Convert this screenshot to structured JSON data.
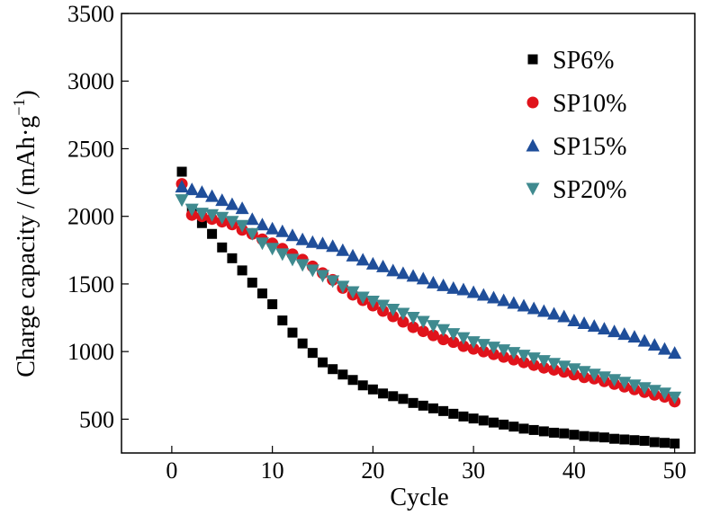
{
  "chart_data": {
    "type": "scatter",
    "xlabel": "Cycle",
    "ylabel": "Charge capacity / (mAh·g",
    "ylabel_sup": "−1",
    "ylabel_suffix": ")",
    "xlim": [
      -5,
      52
    ],
    "ylim": [
      250,
      3500
    ],
    "xticks": [
      0,
      10,
      20,
      30,
      40,
      50
    ],
    "yticks": [
      500,
      1000,
      1500,
      2000,
      2500,
      3000,
      3500
    ],
    "xtick_labels": [
      "0",
      "10",
      "20",
      "30",
      "40",
      "50"
    ],
    "ytick_labels": [
      "500",
      "1000",
      "1500",
      "2000",
      "2500",
      "3000",
      "3500"
    ],
    "grid": false,
    "legend_position": "top-right",
    "x": [
      1,
      2,
      3,
      4,
      5,
      6,
      7,
      8,
      9,
      10,
      11,
      12,
      13,
      14,
      15,
      16,
      17,
      18,
      19,
      20,
      21,
      22,
      23,
      24,
      25,
      26,
      27,
      28,
      29,
      30,
      31,
      32,
      33,
      34,
      35,
      36,
      37,
      38,
      39,
      40,
      41,
      42,
      43,
      44,
      45,
      46,
      47,
      48,
      49,
      50
    ],
    "series": [
      {
        "name": "SP6%",
        "marker": "square",
        "color": "#000000",
        "values": [
          2330,
          2040,
          1950,
          1870,
          1770,
          1690,
          1600,
          1510,
          1430,
          1350,
          1230,
          1140,
          1060,
          990,
          920,
          870,
          830,
          790,
          750,
          720,
          690,
          670,
          650,
          620,
          600,
          580,
          560,
          540,
          520,
          505,
          490,
          475,
          460,
          445,
          430,
          420,
          410,
          400,
          395,
          385,
          375,
          370,
          365,
          355,
          350,
          345,
          340,
          330,
          325,
          320
        ]
      },
      {
        "name": "SP10%",
        "marker": "circle",
        "color": "#e0131b",
        "values": [
          2240,
          2010,
          2000,
          1980,
          1960,
          1940,
          1900,
          1870,
          1830,
          1800,
          1760,
          1720,
          1680,
          1630,
          1580,
          1530,
          1470,
          1420,
          1380,
          1340,
          1300,
          1260,
          1220,
          1180,
          1150,
          1120,
          1090,
          1070,
          1040,
          1020,
          1000,
          980,
          960,
          940,
          920,
          900,
          880,
          865,
          850,
          830,
          810,
          800,
          780,
          760,
          740,
          720,
          700,
          680,
          665,
          630
        ]
      },
      {
        "name": "SP15%",
        "marker": "triangle-up",
        "color": "#1f4e9a",
        "values": [
          2220,
          2200,
          2180,
          2150,
          2120,
          2090,
          2060,
          1980,
          1940,
          1910,
          1890,
          1860,
          1830,
          1810,
          1800,
          1780,
          1750,
          1710,
          1680,
          1650,
          1630,
          1600,
          1580,
          1560,
          1540,
          1510,
          1490,
          1470,
          1460,
          1440,
          1420,
          1400,
          1380,
          1360,
          1340,
          1320,
          1300,
          1280,
          1260,
          1230,
          1210,
          1190,
          1170,
          1150,
          1130,
          1110,
          1080,
          1050,
          1020,
          990
        ]
      },
      {
        "name": "SP20%",
        "marker": "triangle-down",
        "color": "#3f8a8f",
        "values": [
          2120,
          2050,
          2020,
          2010,
          1990,
          1960,
          1930,
          1870,
          1800,
          1760,
          1720,
          1680,
          1640,
          1600,
          1560,
          1520,
          1480,
          1440,
          1400,
          1370,
          1340,
          1310,
          1280,
          1250,
          1220,
          1190,
          1160,
          1130,
          1100,
          1070,
          1050,
          1030,
          1010,
          990,
          970,
          950,
          930,
          910,
          890,
          870,
          850,
          830,
          810,
          790,
          770,
          750,
          730,
          710,
          690,
          660
        ]
      }
    ]
  }
}
